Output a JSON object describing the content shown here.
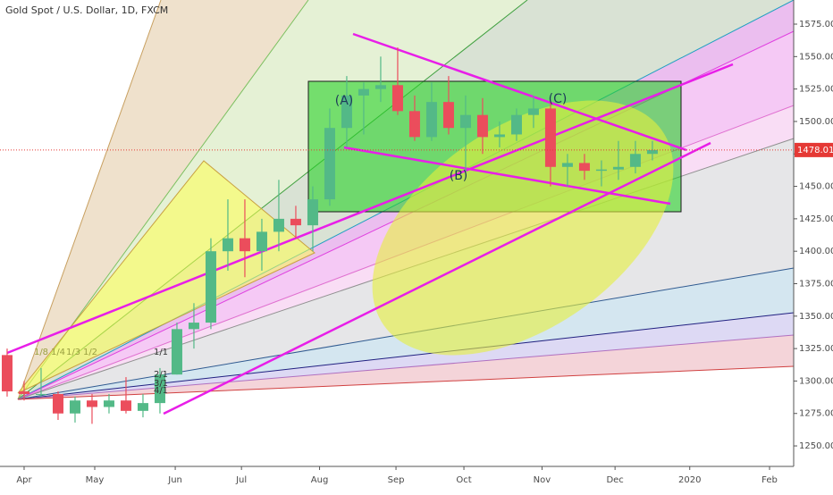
{
  "chart_data": {
    "type": "candlestick",
    "title": "Gold Spot / U.S. Dollar, 1D, FXCM",
    "categories": [
      null,
      null,
      null,
      null,
      null,
      null,
      null,
      null,
      null,
      null,
      null,
      null,
      null,
      null,
      null,
      null,
      null,
      null,
      null,
      null,
      null,
      null,
      null,
      null,
      null,
      null,
      null,
      null,
      null,
      null,
      null,
      null,
      null,
      null,
      null,
      null,
      null,
      null,
      null
    ],
    "open": [
      1320,
      1292,
      1290,
      1290,
      1275,
      1285,
      1280,
      1285,
      1277,
      1283,
      1305,
      1340,
      1345,
      1400,
      1410,
      1400,
      1415,
      1425,
      1420,
      1440,
      1495,
      1520,
      1525,
      1528,
      1508,
      1488,
      1515,
      1495,
      1505,
      1488,
      1490,
      1505,
      1510,
      1465,
      1468,
      1462,
      1463,
      1465,
      1475
    ],
    "high": [
      1325,
      1300,
      1310,
      1292,
      1288,
      1290,
      1290,
      1303,
      1290,
      1310,
      1345,
      1360,
      1410,
      1440,
      1440,
      1425,
      1455,
      1435,
      1450,
      1510,
      1535,
      1530,
      1550,
      1557,
      1520,
      1530,
      1535,
      1520,
      1518,
      1500,
      1510,
      1520,
      1515,
      1475,
      1475,
      1470,
      1485,
      1485,
      1485
    ],
    "low": [
      1288,
      1285,
      1288,
      1270,
      1268,
      1267,
      1275,
      1275,
      1272,
      1275,
      1305,
      1325,
      1340,
      1385,
      1380,
      1385,
      1400,
      1410,
      1400,
      1435,
      1480,
      1490,
      1515,
      1505,
      1485,
      1485,
      1490,
      1460,
      1475,
      1480,
      1485,
      1495,
      1450,
      1450,
      1455,
      1450,
      1455,
      1460,
      1470
    ],
    "close": [
      1292,
      1290,
      1290,
      1275,
      1285,
      1280,
      1285,
      1277,
      1283,
      1305,
      1340,
      1345,
      1400,
      1410,
      1400,
      1415,
      1425,
      1420,
      1440,
      1495,
      1520,
      1525,
      1528,
      1508,
      1488,
      1515,
      1495,
      1505,
      1488,
      1490,
      1505,
      1510,
      1465,
      1468,
      1462,
      1463,
      1465,
      1475,
      1478
    ],
    "up_color": "#53b987",
    "down_color": "#eb4d5c",
    "xlim": [
      -0.42,
      46.32
    ],
    "xticks": [
      {
        "value": 1,
        "label": "Apr"
      },
      {
        "value": 5.16,
        "label": "May"
      },
      {
        "value": 9.9,
        "label": "Jun"
      },
      {
        "value": 13.8,
        "label": "Jul"
      },
      {
        "value": 18.4,
        "label": "Aug"
      },
      {
        "value": 22.9,
        "label": "Sep"
      },
      {
        "value": 26.9,
        "label": "Oct"
      },
      {
        "value": 31.5,
        "label": "Nov"
      },
      {
        "value": 35.8,
        "label": "Dec"
      },
      {
        "value": 40.2,
        "label": "2020"
      },
      {
        "value": 44.9,
        "label": "Feb"
      }
    ],
    "ylim": [
      1234.2,
      1593.6
    ],
    "yticks": [
      {
        "value": 1250,
        "label": "1250.00"
      },
      {
        "value": 1275,
        "label": "1275.00"
      },
      {
        "value": 1300,
        "label": "1300.00"
      },
      {
        "value": 1325,
        "label": "1325.00"
      },
      {
        "value": 1350,
        "label": "1350.00"
      },
      {
        "value": 1375,
        "label": "1375.00"
      },
      {
        "value": 1400,
        "label": "1400.00"
      },
      {
        "value": 1425,
        "label": "1425.00"
      },
      {
        "value": 1450,
        "label": "1450.00"
      },
      {
        "value": 1475,
        "label": "1475.00"
      },
      {
        "value": 1500,
        "label": "1500.00"
      },
      {
        "value": 1525,
        "label": "1525.00"
      },
      {
        "value": 1550,
        "label": "1550.00"
      },
      {
        "value": 1575,
        "label": "1575.00"
      }
    ],
    "last_price": {
      "value": 1478.01,
      "label": "1478.01"
    },
    "annotations": [
      "(A)",
      "(B)",
      "(C)",
      "1/8",
      "1/4",
      "1/3",
      "1/2",
      "1/1",
      "2/1",
      "3/1",
      "4/1"
    ]
  }
}
